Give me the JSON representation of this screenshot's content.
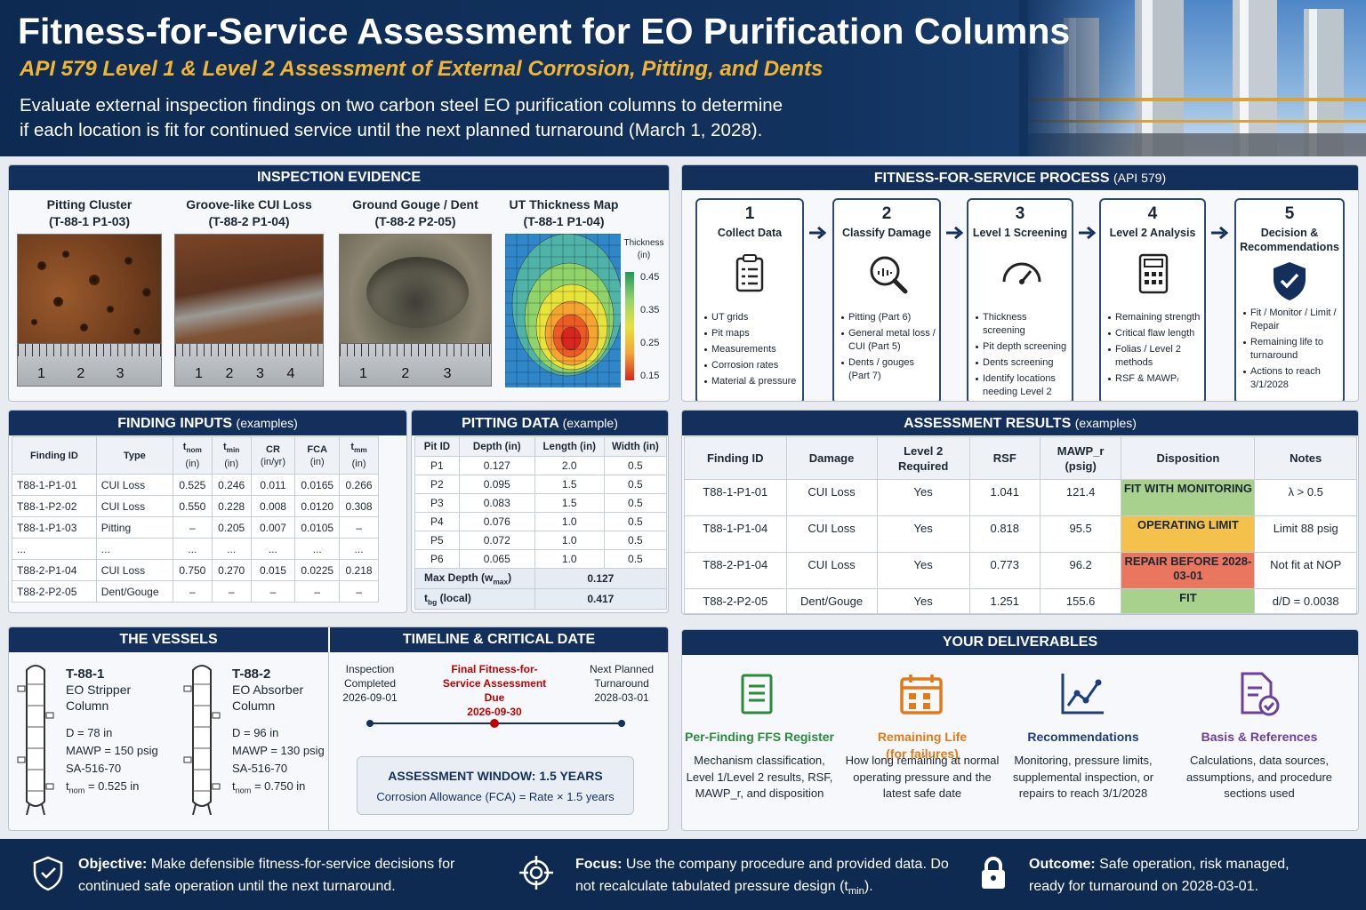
{
  "header": {
    "title": "Fitness-for-Service Assessment for EO Purification Columns",
    "subtitle": "API 579 Level 1 & Level 2 Assessment of External Corrosion, Pitting, and Dents",
    "description": "Evaluate external inspection findings on two carbon steel EO purification columns to determine if each location is fit for continued service until the next planned turnaround (March 1, 2028)."
  },
  "inspection_evidence": {
    "title": "INSPECTION EVIDENCE",
    "photos": [
      {
        "title": "Pitting Cluster",
        "id": "(T-88-1 P1-03)",
        "ruler": [
          "1",
          "2",
          "3"
        ]
      },
      {
        "title": "Groove-like CUI Loss",
        "id": "(T-88-2 P1-04)",
        "ruler": [
          "1",
          "2",
          "3",
          "4"
        ]
      },
      {
        "title": "Ground Gouge / Dent",
        "id": "(T-88-2 P2-05)",
        "ruler": [
          "1",
          "2",
          "3"
        ]
      }
    ],
    "ut_map": {
      "title": "UT Thickness Map",
      "id": "(T-88-1 P1-04)",
      "legend_title": "Thickness",
      "legend_unit": "(in)",
      "legend_values": [
        "0.45",
        "0.35",
        "0.25",
        "0.15"
      ]
    }
  },
  "ffs_process": {
    "title": "FITNESS-FOR-SERVICE PROCESS",
    "title_suffix": "(API 579)",
    "steps": [
      {
        "number": "1",
        "name": "Collect Data",
        "bullets": [
          "UT grids",
          "Pit maps",
          "Measurements",
          "Corrosion rates",
          "Material & pressure"
        ]
      },
      {
        "number": "2",
        "name": "Classify Damage",
        "bullets": [
          "Pitting (Part 6)",
          "General metal loss / CUI (Part 5)",
          "Dents / gouges (Part 7)"
        ]
      },
      {
        "number": "3",
        "name": "Level 1 Screening",
        "bullets": [
          "Thickness screening",
          "Pit depth screening",
          "Dents screening",
          "Identify locations needing Level 2"
        ]
      },
      {
        "number": "4",
        "name": "Level 2 Analysis",
        "bullets": [
          "Remaining strength",
          "Critical flaw length",
          "Folias / Level 2 methods",
          "RSF & MAWPᵣ"
        ]
      },
      {
        "number": "5",
        "name": "Decision & Recommendations",
        "bullets": [
          "Fit / Monitor / Limit / Repair",
          "Remaining life to turnaround",
          "Actions to reach 3/1/2028"
        ]
      }
    ]
  },
  "finding_inputs": {
    "title": "FINDING INPUTS",
    "title_suffix": "(examples)",
    "columns": [
      {
        "label": "Finding ID"
      },
      {
        "label": "Type"
      },
      {
        "label": "t",
        "sub": "nom",
        "unit": "(in)"
      },
      {
        "label": "t",
        "sub": "min",
        "unit": "(in)"
      },
      {
        "label": "CR",
        "unit": "(in/yr)"
      },
      {
        "label": "FCA",
        "unit": "(in)"
      },
      {
        "label": "t",
        "sub": "mm",
        "unit": "(in)"
      }
    ],
    "rows": [
      [
        "T88-1-P1-01",
        "CUI Loss",
        "0.525",
        "0.246",
        "0.011",
        "0.0165",
        "0.266"
      ],
      [
        "T88-1-P2-02",
        "CUI Loss",
        "0.550",
        "0.228",
        "0.008",
        "0.0120",
        "0.308"
      ],
      [
        "T88-1-P1-03",
        "Pitting",
        "–",
        "0.205",
        "0.007",
        "0.0105",
        "–"
      ],
      [
        "...",
        "...",
        "...",
        "...",
        "...",
        "...",
        "..."
      ],
      [
        "T88-2-P1-04",
        "CUI Loss",
        "0.750",
        "0.270",
        "0.015",
        "0.0225",
        "0.218"
      ],
      [
        "T88-2-P2-05",
        "Dent/Gouge",
        "–",
        "–",
        "–",
        "–",
        "–"
      ]
    ]
  },
  "pitting_data": {
    "title": "PITTING DATA",
    "title_suffix": "(example)",
    "columns": [
      "Pit ID",
      "Depth (in)",
      "Length (in)",
      "Width (in)"
    ],
    "rows": [
      [
        "P1",
        "0.127",
        "2.0",
        "0.5"
      ],
      [
        "P2",
        "0.095",
        "1.5",
        "0.5"
      ],
      [
        "P3",
        "0.083",
        "1.5",
        "0.5"
      ],
      [
        "P4",
        "0.076",
        "1.0",
        "0.5"
      ],
      [
        "P5",
        "0.072",
        "1.0",
        "0.5"
      ],
      [
        "P6",
        "0.065",
        "1.0",
        "0.5"
      ]
    ],
    "summary": [
      {
        "label": {
          "text": "Max Depth (w",
          "sub": "max",
          "after": ")"
        },
        "value": "0.127"
      },
      {
        "label": {
          "text": "t",
          "sub": "bg",
          "after": " (local)"
        },
        "value": "0.417"
      }
    ]
  },
  "assessment_results": {
    "title": "ASSESSMENT RESULTS",
    "title_suffix": "(examples)",
    "columns": [
      "Finding ID",
      "Damage",
      "Level 2 Required",
      "RSF",
      "MAWP_r (psig)",
      "Disposition",
      "Notes"
    ],
    "rows": [
      {
        "cells": [
          "T88-1-P1-01",
          "CUI Loss",
          "Yes",
          "1.041",
          "121.4",
          "FIT WITH MONITORING",
          "λ > 0.5"
        ],
        "disposition_color": "#a9d18e"
      },
      {
        "cells": [
          "T88-1-P1-04",
          "CUI Loss",
          "Yes",
          "0.818",
          "95.5",
          "OPERATING LIMIT",
          "Limit 88 psig"
        ],
        "disposition_color": "#f4c24a"
      },
      {
        "cells": [
          "T88-2-P1-04",
          "CUI Loss",
          "Yes",
          "0.773",
          "96.2",
          "REPAIR BEFORE 2028-03-01",
          "Not fit at NOP"
        ],
        "disposition_color": "#e9765f"
      },
      {
        "cells": [
          "T88-2-P2-05",
          "Dent/Gouge",
          "Yes",
          "1.251",
          "155.6",
          "FIT",
          "d/D = 0.0038"
        ],
        "disposition_color": "#a9d18e"
      }
    ]
  },
  "vessels": {
    "title": "THE VESSELS",
    "items": [
      {
        "tag": "T-88-1",
        "name": "EO Stripper Column",
        "specs": [
          "D = 78 in",
          "MAWP = 150 psig",
          "SA-516-70"
        ],
        "tnom": {
          "text": "t",
          "sub": "nom",
          "after": " = 0.525 in"
        }
      },
      {
        "tag": "T-88-2",
        "name": "EO Absorber Column",
        "specs": [
          "D = 96 in",
          "MAWP = 130 psig",
          "SA-516-70"
        ],
        "tnom": {
          "text": "t",
          "sub": "nom",
          "after": " = 0.750 in"
        }
      }
    ]
  },
  "timeline": {
    "title": "TIMELINE & CRITICAL DATE",
    "events": [
      {
        "label": "Inspection Completed",
        "date": "2026-09-01",
        "highlight": false
      },
      {
        "label": "Final Fitness-for-Service Assessment Due",
        "date": "2026-09-30",
        "highlight": true
      },
      {
        "label": "Next Planned Turnaround",
        "date": "2028-03-01",
        "highlight": false
      }
    ],
    "window_title": "ASSESSMENT WINDOW: 1.5 YEARS",
    "window_formula": "Corrosion Allowance (FCA) = Rate × 1.5 years"
  },
  "deliverables": {
    "title": "YOUR DELIVERABLES",
    "items": [
      {
        "title": "Per-Finding FFS Register",
        "color": "#2b8a3e",
        "description": "Mechanism classification, Level 1/Level 2 results, RSF, MAWP_r, and disposition"
      },
      {
        "title": "Remaining Life (for failures)",
        "color": "#e07b1a",
        "description": "How long remaining at normal operating pressure and the latest safe date"
      },
      {
        "title": "Recommendations",
        "color": "#1f3d7a",
        "description": "Monitoring, pressure limits, supplemental inspection, or repairs to reach 3/1/2028"
      },
      {
        "title": "Basis & References",
        "color": "#6a3fa0",
        "description": "Calculations, data sources, assumptions, and procedure sections used"
      }
    ]
  },
  "footer": {
    "items": [
      {
        "label": "Objective:",
        "text": "Make defensible fitness-for-service decisions for continued safe operation until the next turnaround."
      },
      {
        "label": "Focus:",
        "text": "Use the company procedure and provided data. Do not recalculate tabulated pressure design (t",
        "sub": "min",
        "after": ")."
      },
      {
        "label": "Outcome:",
        "text": "Safe operation, risk managed, ready for turnaround on 2028-03-01."
      }
    ]
  }
}
